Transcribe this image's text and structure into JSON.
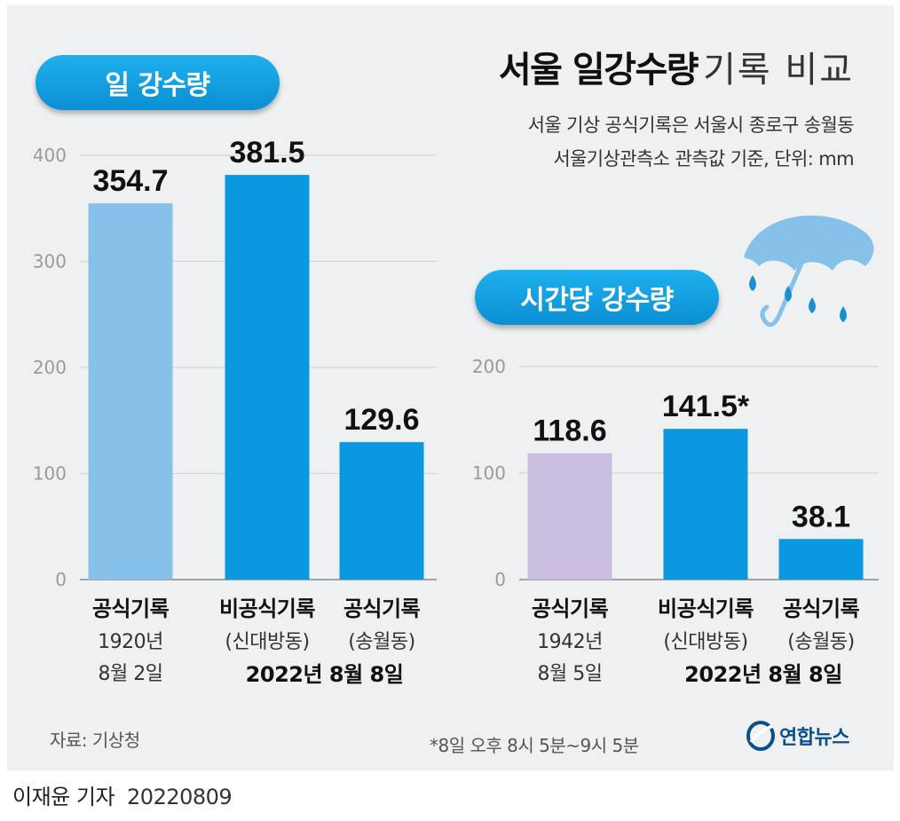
{
  "header": {
    "title_bold": "서울 일강수량",
    "title_light": "기록 비교",
    "subtitle_lines": [
      "서울 기상 공식기록은 서울시 종로구 송월동",
      "서울기상관측소 관측값 기준, 단위: mm"
    ]
  },
  "colors": {
    "light_blue": "#86c1ea",
    "blue": "#0a99e0",
    "lavender": "#cbbfe1"
  },
  "chart_data": [
    {
      "type": "bar",
      "title": "일 강수량",
      "ylim": [
        0,
        400
      ],
      "yticks": [
        "0",
        "100",
        "200",
        "300",
        "400"
      ],
      "grid": true,
      "bars": [
        {
          "value": 354.7,
          "label": "354.7",
          "color_key": "light_blue",
          "category": [
            "공식기록",
            "1920년",
            "8월 2일"
          ]
        },
        {
          "value": 381.5,
          "label": "381.5",
          "color_key": "blue",
          "category": [
            "비공식기록",
            "(신대방동)"
          ]
        },
        {
          "value": 129.6,
          "label": "129.6",
          "color_key": "blue",
          "category": [
            "공식기록",
            "(송월동)"
          ]
        }
      ],
      "group_label": "2022년 8월 8일"
    },
    {
      "type": "bar",
      "title": "시간당 강수량",
      "ylim": [
        0,
        200
      ],
      "yticks": [
        "0",
        "100",
        "200"
      ],
      "grid": true,
      "bars": [
        {
          "value": 118.6,
          "label": "118.6",
          "color_key": "lavender",
          "category": [
            "공식기록",
            "1942년",
            "8월 5일"
          ]
        },
        {
          "value": 141.5,
          "label": "141.5*",
          "color_key": "blue",
          "category": [
            "비공식기록",
            "(신대방동)"
          ]
        },
        {
          "value": 38.1,
          "label": "38.1",
          "color_key": "blue",
          "category": [
            "공식기록",
            "(송월동)"
          ]
        }
      ],
      "group_label": "2022년 8월 8일"
    }
  ],
  "footer": {
    "source": "자료: 기상청",
    "footnote": "*8일 오후 8시 5분~9시 5분",
    "logo_text": "연합뉴스",
    "byline_name": "이재윤 기자",
    "byline_date": "20220809"
  },
  "icons": [
    "umbrella-rain-icon",
    "yonhap-logo-icon"
  ]
}
